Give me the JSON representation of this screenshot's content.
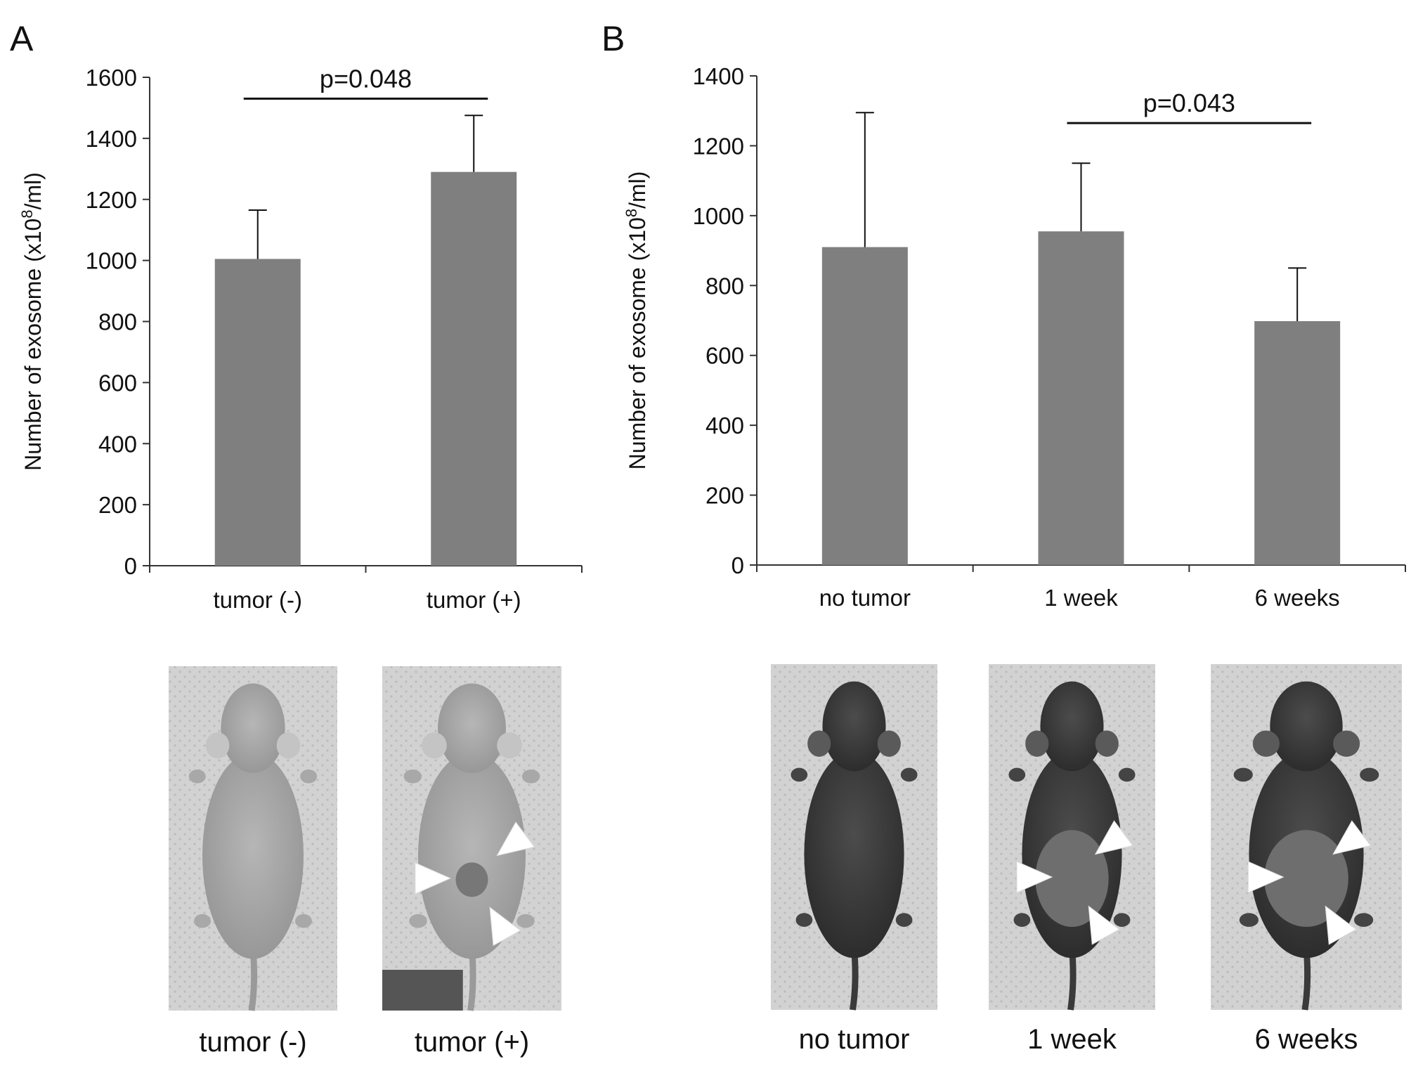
{
  "colors": {
    "bar": "#7f7f7f",
    "axis": "#333333",
    "photo_bg": "#cfcfcf",
    "arrow": "#ffffff"
  },
  "chart_data": [
    {
      "panel": "A",
      "type": "bar",
      "ylabel_prefix": "Number of exosome (x10",
      "ylabel_sup": "8",
      "ylabel_suffix": "/ml)",
      "categories": [
        "tumor (-)",
        "tumor (+)"
      ],
      "values": [
        1005,
        1290
      ],
      "errors": [
        160,
        185
      ],
      "ylim": [
        0,
        1600
      ],
      "yticks": [
        "0",
        "200",
        "400",
        "600",
        "800",
        "1000",
        "1200",
        "1400",
        "1600"
      ],
      "significance": {
        "label": "p=0.048",
        "from": 0,
        "to": 1,
        "y": 1530
      },
      "photo_labels": [
        "tumor (-)",
        "tumor (+)"
      ],
      "photo_mice": [
        "nude",
        "nude-tumor"
      ]
    },
    {
      "panel": "B",
      "type": "bar",
      "ylabel_prefix": "Number of exosome (x10",
      "ylabel_sup": "8",
      "ylabel_suffix": "/ml)",
      "categories": [
        "no tumor",
        "1 week",
        "6 weeks"
      ],
      "values": [
        910,
        955,
        698
      ],
      "errors": [
        385,
        195,
        152
      ],
      "ylim": [
        0,
        1400
      ],
      "yticks": [
        "0",
        "200",
        "400",
        "600",
        "800",
        "1000",
        "1200",
        "1400"
      ],
      "significance": {
        "label": "p=0.043",
        "from": 1,
        "to": 2,
        "y": 1265
      },
      "photo_labels": [
        "no tumor",
        "1 week",
        "6 weeks"
      ],
      "photo_mice": [
        "dark",
        "dark-tumor",
        "dark-tumor"
      ]
    }
  ]
}
